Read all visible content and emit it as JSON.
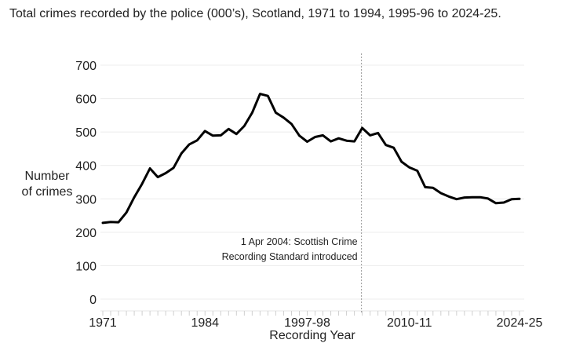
{
  "title": "Total crimes recorded by the police (000’s), Scotland, 1971 to 1994, 1995-96 to 2024-25.",
  "chart_data": {
    "type": "line",
    "title": "Total crimes recorded by the police (000’s), Scotland, 1971 to 1994, 1995-96 to 2024-25.",
    "xlabel": "Recording Year",
    "ylabel": "Number of crimes",
    "ylim": [
      0,
      700
    ],
    "yticks": [
      0,
      100,
      200,
      300,
      400,
      500,
      600,
      700
    ],
    "xtick_labels": [
      "1971",
      "1984",
      "1997-98",
      "2010-11",
      "2024-25"
    ],
    "grid": true,
    "legend": null,
    "x": [
      "1971",
      "1972",
      "1973",
      "1974",
      "1975",
      "1976",
      "1977",
      "1978",
      "1979",
      "1980",
      "1981",
      "1982",
      "1983",
      "1984",
      "1985",
      "1986",
      "1987",
      "1988",
      "1989",
      "1990",
      "1991",
      "1992",
      "1993",
      "1994",
      "1995-96",
      "1996-97",
      "1997-98",
      "1998-99",
      "1999-00",
      "2000-01",
      "2001-02",
      "2002-03",
      "2003-04",
      "2004-05",
      "2005-06",
      "2006-07",
      "2007-08",
      "2008-09",
      "2009-10",
      "2010-11",
      "2011-12",
      "2012-13",
      "2013-14",
      "2014-15",
      "2015-16",
      "2016-17",
      "2017-18",
      "2018-19",
      "2019-20",
      "2020-21",
      "2021-22",
      "2022-23",
      "2023-24",
      "2024-25"
    ],
    "series": [
      {
        "name": "Total crimes recorded (000's)",
        "values": [
          228,
          231,
          230,
          259,
          305,
          345,
          391,
          365,
          377,
          393,
          436,
          463,
          475,
          503,
          489,
          490,
          509,
          494,
          518,
          558,
          614,
          608,
          558,
          543,
          524,
          489,
          471,
          485,
          490,
          472,
          481,
          474,
          472,
          512,
          490,
          497,
          461,
          453,
          411,
          394,
          384,
          335,
          333,
          317,
          307,
          299,
          304,
          305,
          305,
          301,
          287,
          289,
          299,
          300
        ]
      }
    ],
    "annotations": [
      {
        "x": "2004-05",
        "type": "vertical-dashed-line",
        "text_line1": "1 Apr 2004: Scottish Crime",
        "text_line2": "Recording Standard introduced"
      }
    ]
  },
  "axis": {
    "ylabel_line1": "Number",
    "ylabel_line2": "of crimes",
    "xlabel": "Recording Year",
    "yticks": [
      "0",
      "100",
      "200",
      "300",
      "400",
      "500",
      "600",
      "700"
    ],
    "xticks": [
      "1971",
      "1984",
      "1997-98",
      "2010-11",
      "2024-25"
    ]
  },
  "annotation": {
    "line1": "1 Apr 2004: Scottish Crime",
    "line2": "Recording Standard introduced"
  }
}
